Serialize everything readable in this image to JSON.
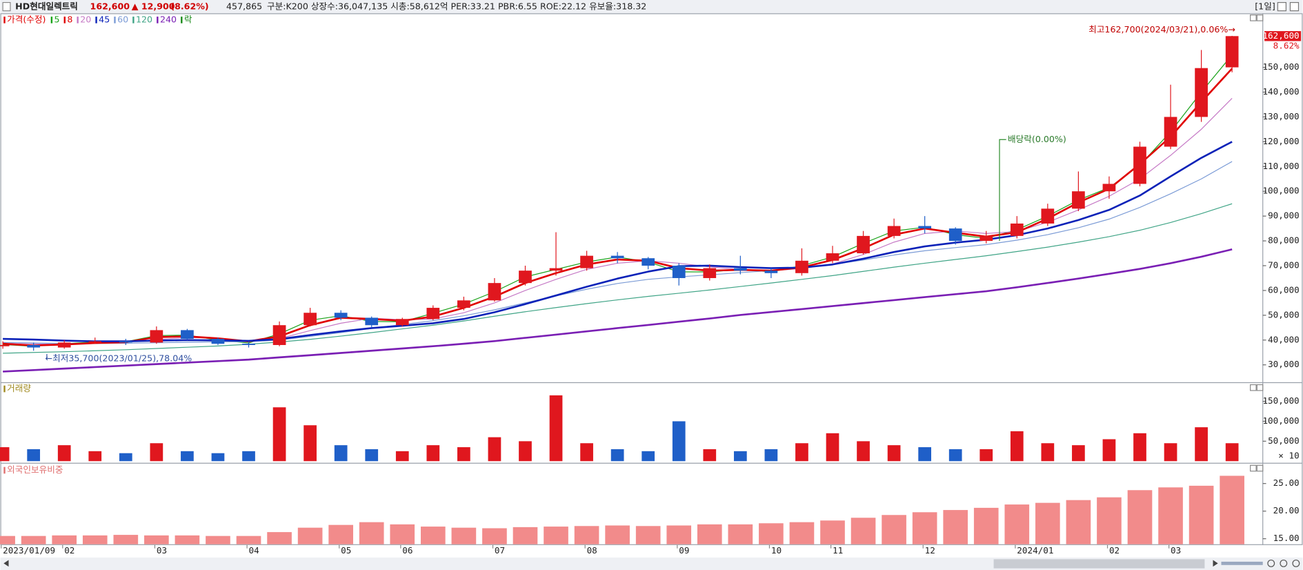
{
  "header": {
    "name": "HD현대일렉트릭",
    "price": "162,600",
    "change": "▲ 12,900",
    "change_pct": "(8.62%)",
    "volume": "457,865",
    "info": "구분:K200 상장수:36,047,135 시총:58,612억 PER:33.21 PBR:6.55 ROE:22.12 유보율:318.32",
    "period": "[1일]"
  },
  "chart_data": [
    {
      "type": "candlestick",
      "title": "가격(수정)",
      "title_color": "#e00000",
      "up_color": "#e0171e",
      "down_color": "#1f5fc8",
      "categories": [
        "2023/01/09",
        null,
        "02",
        null,
        null,
        "03",
        null,
        null,
        "04",
        null,
        null,
        "05",
        null,
        "06",
        null,
        null,
        "07",
        null,
        null,
        "08",
        null,
        null,
        "09",
        null,
        null,
        "10",
        null,
        "11",
        null,
        null,
        "12",
        null,
        null,
        "2024/01",
        null,
        null,
        "02",
        null,
        "03",
        null,
        null
      ],
      "open": [
        37500,
        38000,
        37000,
        39000,
        39500,
        39000,
        44000,
        40500,
        38500,
        38000,
        46000,
        51000,
        49000,
        46000,
        48500,
        53000,
        56000,
        63000,
        68000,
        69000,
        74000,
        73000,
        70000,
        65000,
        69000,
        68000,
        67000,
        72000,
        75000,
        82000,
        86000,
        85000,
        80000,
        82000,
        87000,
        93000,
        100000,
        103000,
        118000,
        130000,
        150000
      ],
      "high": [
        39500,
        39000,
        40000,
        41000,
        40500,
        45500,
        44500,
        41000,
        39500,
        47500,
        53000,
        52000,
        49500,
        49000,
        54000,
        57500,
        65000,
        70000,
        83500,
        76000,
        75500,
        73500,
        71000,
        70500,
        74000,
        69000,
        77000,
        78000,
        84000,
        89000,
        90000,
        85500,
        84000,
        90000,
        95000,
        108000,
        106000,
        120000,
        143000,
        157000,
        162700
      ],
      "low": [
        36500,
        35700,
        36500,
        38500,
        38000,
        38500,
        40000,
        38000,
        37000,
        37500,
        45500,
        48000,
        45000,
        45500,
        48000,
        52000,
        55500,
        62000,
        66000,
        68000,
        71000,
        68500,
        62000,
        64000,
        66500,
        65000,
        66000,
        71000,
        74500,
        81000,
        83000,
        78500,
        79000,
        81000,
        86000,
        92000,
        97000,
        102000,
        117000,
        128000,
        148000
      ],
      "close": [
        38000,
        37000,
        39000,
        39500,
        39000,
        44000,
        40500,
        38500,
        38000,
        46000,
        51000,
        49000,
        46000,
        48500,
        53000,
        56000,
        63000,
        68000,
        69000,
        74000,
        73000,
        70000,
        65000,
        69000,
        68000,
        67000,
        72000,
        75000,
        82000,
        86000,
        85000,
        80000,
        82000,
        87000,
        93000,
        100000,
        103000,
        118000,
        130000,
        149700,
        162600
      ],
      "series": [
        {
          "name": "5",
          "color": "#1aa31a",
          "bold": false,
          "values": [
            38200,
            37500,
            38500,
            39200,
            39300,
            41800,
            42000,
            40000,
            38800,
            42500,
            48000,
            49800,
            47500,
            47400,
            50800,
            54500,
            59500,
            65500,
            68500,
            71500,
            73500,
            71500,
            67500,
            67500,
            68500,
            67500,
            70000,
            73500,
            79000,
            84000,
            85500,
            82500,
            81000,
            84500,
            90000,
            96500,
            101500,
            110500,
            124000,
            140000,
            155000
          ]
        },
        {
          "name": "8",
          "color": "#e00000",
          "bold": true,
          "values": [
            38500,
            37800,
            38200,
            38800,
            39100,
            41200,
            41500,
            40700,
            39500,
            41500,
            46000,
            49000,
            48500,
            47800,
            49500,
            53000,
            57500,
            63000,
            67000,
            70500,
            72500,
            72000,
            69000,
            68000,
            68300,
            68000,
            69300,
            72300,
            77000,
            82500,
            85000,
            83300,
            81700,
            83500,
            89000,
            95500,
            101000,
            111000,
            122000,
            136000,
            149500
          ]
        },
        {
          "name": "20",
          "color": "#c67ac6",
          "bold": false,
          "values": [
            39000,
            38500,
            38200,
            38600,
            39200,
            40200,
            41000,
            40800,
            39600,
            40600,
            43800,
            46800,
            48800,
            48200,
            48500,
            51000,
            55000,
            60000,
            64500,
            68500,
            71000,
            72000,
            71000,
            69500,
            68500,
            68000,
            68800,
            70700,
            74500,
            79500,
            83000,
            84000,
            83000,
            83800,
            87500,
            92500,
            98000,
            105000,
            114500,
            125000,
            137500
          ]
        },
        {
          "name": "45",
          "color": "#0b22b8",
          "bold": true,
          "values": [
            40500,
            40200,
            39800,
            39500,
            39500,
            39800,
            40000,
            39900,
            39700,
            40400,
            42000,
            43500,
            44800,
            45800,
            46800,
            48500,
            51200,
            54500,
            58000,
            61500,
            64800,
            67600,
            69800,
            70000,
            69400,
            69000,
            69200,
            70500,
            72800,
            75500,
            77800,
            79300,
            80500,
            82300,
            85000,
            88400,
            92500,
            98300,
            106000,
            113500,
            120000
          ]
        },
        {
          "name": "60",
          "color": "#7b9bd6",
          "bold": false,
          "values": [
            39000,
            38800,
            38600,
            38600,
            38700,
            38900,
            39100,
            39300,
            39300,
            40000,
            41500,
            43000,
            44700,
            46300,
            47800,
            49800,
            52200,
            55000,
            57800,
            60500,
            62800,
            64500,
            65500,
            66300,
            67200,
            68000,
            69000,
            70500,
            72300,
            74300,
            76000,
            77300,
            78500,
            80300,
            82500,
            85300,
            88800,
            93500,
            99000,
            105000,
            112000
          ]
        },
        {
          "name": "120",
          "color": "#3fa486",
          "bold": false,
          "values": [
            34700,
            35000,
            35300,
            35700,
            36100,
            36600,
            37100,
            37600,
            38300,
            39200,
            40300,
            41600,
            43000,
            44500,
            46000,
            47700,
            49600,
            51400,
            53100,
            54700,
            56200,
            57600,
            58900,
            60200,
            61600,
            63000,
            64500,
            66000,
            67700,
            69400,
            71000,
            72500,
            74000,
            75700,
            77500,
            79500,
            81700,
            84300,
            87400,
            91000,
            95000
          ]
        },
        {
          "name": "240",
          "color": "#7a1fb4",
          "bold": true,
          "values": [
            27300,
            27900,
            28500,
            29100,
            29700,
            30300,
            30900,
            31500,
            32100,
            33000,
            33900,
            34800,
            35700,
            36600,
            37500,
            38500,
            39600,
            40900,
            42200,
            43500,
            44800,
            46100,
            47400,
            48700,
            50100,
            51300,
            52500,
            53700,
            54900,
            56100,
            57300,
            58500,
            59700,
            61300,
            63000,
            64800,
            66700,
            68700,
            71000,
            73600,
            76600
          ]
        }
      ],
      "extra_legend": {
        "text": "락",
        "color": "#1a8a1a"
      },
      "ylim": [
        24000,
        172000
      ],
      "yticks": [
        {
          "value": 30000,
          "label": "30,000"
        },
        {
          "value": 40000,
          "label": "40,000"
        },
        {
          "value": 50000,
          "label": "50,000"
        },
        {
          "value": 60000,
          "label": "60,000"
        },
        {
          "value": 70000,
          "label": "70,000"
        },
        {
          "value": 80000,
          "label": "80,000"
        },
        {
          "value": 90000,
          "label": "90,000"
        },
        {
          "value": 100000,
          "label": "100,000"
        },
        {
          "value": 110000,
          "label": "110,000"
        },
        {
          "value": 120000,
          "label": "120,000"
        },
        {
          "value": 130000,
          "label": "130,000"
        },
        {
          "value": 140000,
          "label": "140,000"
        },
        {
          "value": 150000,
          "label": "150,000"
        }
      ],
      "last_price_label": "162,600",
      "last_change_label": "8.62%",
      "annotations": {
        "high": "최고162,700(2024/03/21),0.06%→",
        "low": "←최저35,700(2023/01/25),78.04%",
        "dividend": "배당락(0.00%)"
      }
    },
    {
      "type": "bar",
      "title": "거래량",
      "title_color": "#a08a20",
      "values": [
        35000,
        30000,
        40000,
        25000,
        20000,
        45000,
        25000,
        20000,
        25000,
        135000,
        90000,
        40000,
        30000,
        25000,
        40000,
        35000,
        60000,
        50000,
        165000,
        45000,
        30000,
        25000,
        100000,
        30000,
        25000,
        30000,
        45000,
        70000,
        50000,
        40000,
        35000,
        30000,
        30000,
        75000,
        45000,
        40000,
        55000,
        70000,
        45000,
        85000,
        45000
      ],
      "ylim": [
        0,
        180000
      ],
      "yticks": [
        {
          "value": 50000,
          "label": "50,000"
        },
        {
          "value": 100000,
          "label": "100,000"
        },
        {
          "value": 150000,
          "label": "150,000"
        }
      ],
      "unit_label": "× 10"
    },
    {
      "type": "bar",
      "title": "외국인보유비중",
      "title_color": "#e07070",
      "color": "#f28b8b",
      "values": [
        15.5,
        15.5,
        15.6,
        15.6,
        15.7,
        15.6,
        15.6,
        15.5,
        15.5,
        16.2,
        17.0,
        17.5,
        18.0,
        17.6,
        17.2,
        17.0,
        16.9,
        17.1,
        17.2,
        17.3,
        17.4,
        17.3,
        17.4,
        17.6,
        17.6,
        17.8,
        18.0,
        18.3,
        18.8,
        19.3,
        19.8,
        20.2,
        20.6,
        21.2,
        21.5,
        22.0,
        22.5,
        23.8,
        24.3,
        24.6,
        26.4
      ],
      "ylim": [
        14,
        28
      ],
      "yticks": [
        {
          "value": 15,
          "label": "15.00"
        },
        {
          "value": 20,
          "label": "20.00"
        },
        {
          "value": 25,
          "label": "25.00"
        }
      ]
    }
  ]
}
